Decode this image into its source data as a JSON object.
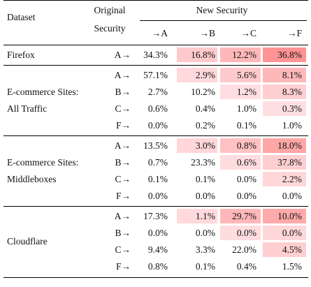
{
  "header": {
    "dataset": "Dataset",
    "original_line1": "Original",
    "original_line2": "Security",
    "new_security": "New Security",
    "col_a": "→A",
    "col_b": "→B",
    "col_c": "→C",
    "col_f": "→F"
  },
  "groups": [
    {
      "label_lines": [
        "Firefox"
      ],
      "rows": [
        {
          "from": "A→",
          "values": [
            "34.3%",
            "16.8%",
            "12.2%",
            "36.8%"
          ],
          "shade": [
            0,
            0.35,
            0.55,
            0.95
          ]
        }
      ]
    },
    {
      "label_lines": [
        "E-commerce Sites:",
        "All Traffic"
      ],
      "rows": [
        {
          "from": "A→",
          "values": [
            "57.1%",
            "2.9%",
            "5.6%",
            "8.1%"
          ],
          "shade": [
            0,
            0.18,
            0.35,
            0.55
          ]
        },
        {
          "from": "B→",
          "values": [
            "2.7%",
            "10.2%",
            "1.2%",
            "8.3%"
          ],
          "shade": [
            0,
            0,
            0.12,
            0.3
          ]
        },
        {
          "from": "C→",
          "values": [
            "0.6%",
            "0.4%",
            "1.0%",
            "0.3%"
          ],
          "shade": [
            0,
            0,
            0,
            0.12
          ]
        },
        {
          "from": "F→",
          "values": [
            "0.0%",
            "0.2%",
            "0.1%",
            "1.0%"
          ],
          "shade": [
            0,
            0,
            0,
            0
          ]
        }
      ]
    },
    {
      "label_lines": [
        "E-commerce Sites:",
        "Middleboxes"
      ],
      "rows": [
        {
          "from": "A→",
          "values": [
            "13.5%",
            "3.0%",
            "0.8%",
            "18.0%"
          ],
          "shade": [
            0,
            0.2,
            0.45,
            0.75
          ]
        },
        {
          "from": "B→",
          "values": [
            "0.7%",
            "23.3%",
            "0.6%",
            "37.8%"
          ],
          "shade": [
            0,
            0,
            0.15,
            0.3
          ]
        },
        {
          "from": "C→",
          "values": [
            "0.1%",
            "0.1%",
            "0.0%",
            "2.2%"
          ],
          "shade": [
            0,
            0,
            0,
            0.2
          ]
        },
        {
          "from": "F→",
          "values": [
            "0.0%",
            "0.0%",
            "0.0%",
            "0.0%"
          ],
          "shade": [
            0,
            0,
            0,
            0
          ]
        }
      ]
    },
    {
      "label_lines": [
        "Cloudflare"
      ],
      "rows": [
        {
          "from": "A→",
          "values": [
            "17.3%",
            "1.1%",
            "29.7%",
            "10.0%"
          ],
          "shade": [
            0,
            0.18,
            0.55,
            0.7
          ]
        },
        {
          "from": "B→",
          "values": [
            "0.0%",
            "0.0%",
            "0.0%",
            "0.0%"
          ],
          "shade": [
            0,
            0,
            0.15,
            0.2
          ]
        },
        {
          "from": "C→",
          "values": [
            "9.4%",
            "3.3%",
            "22.0%",
            "4.5%"
          ],
          "shade": [
            0,
            0,
            0,
            0.3
          ]
        },
        {
          "from": "F→",
          "values": [
            "0.8%",
            "0.1%",
            "0.4%",
            "1.5%"
          ],
          "shade": [
            0,
            0,
            0,
            0
          ]
        }
      ]
    }
  ],
  "colors": {
    "heat_min": "#ffe9ec",
    "heat_max": "#ff8f8f"
  }
}
